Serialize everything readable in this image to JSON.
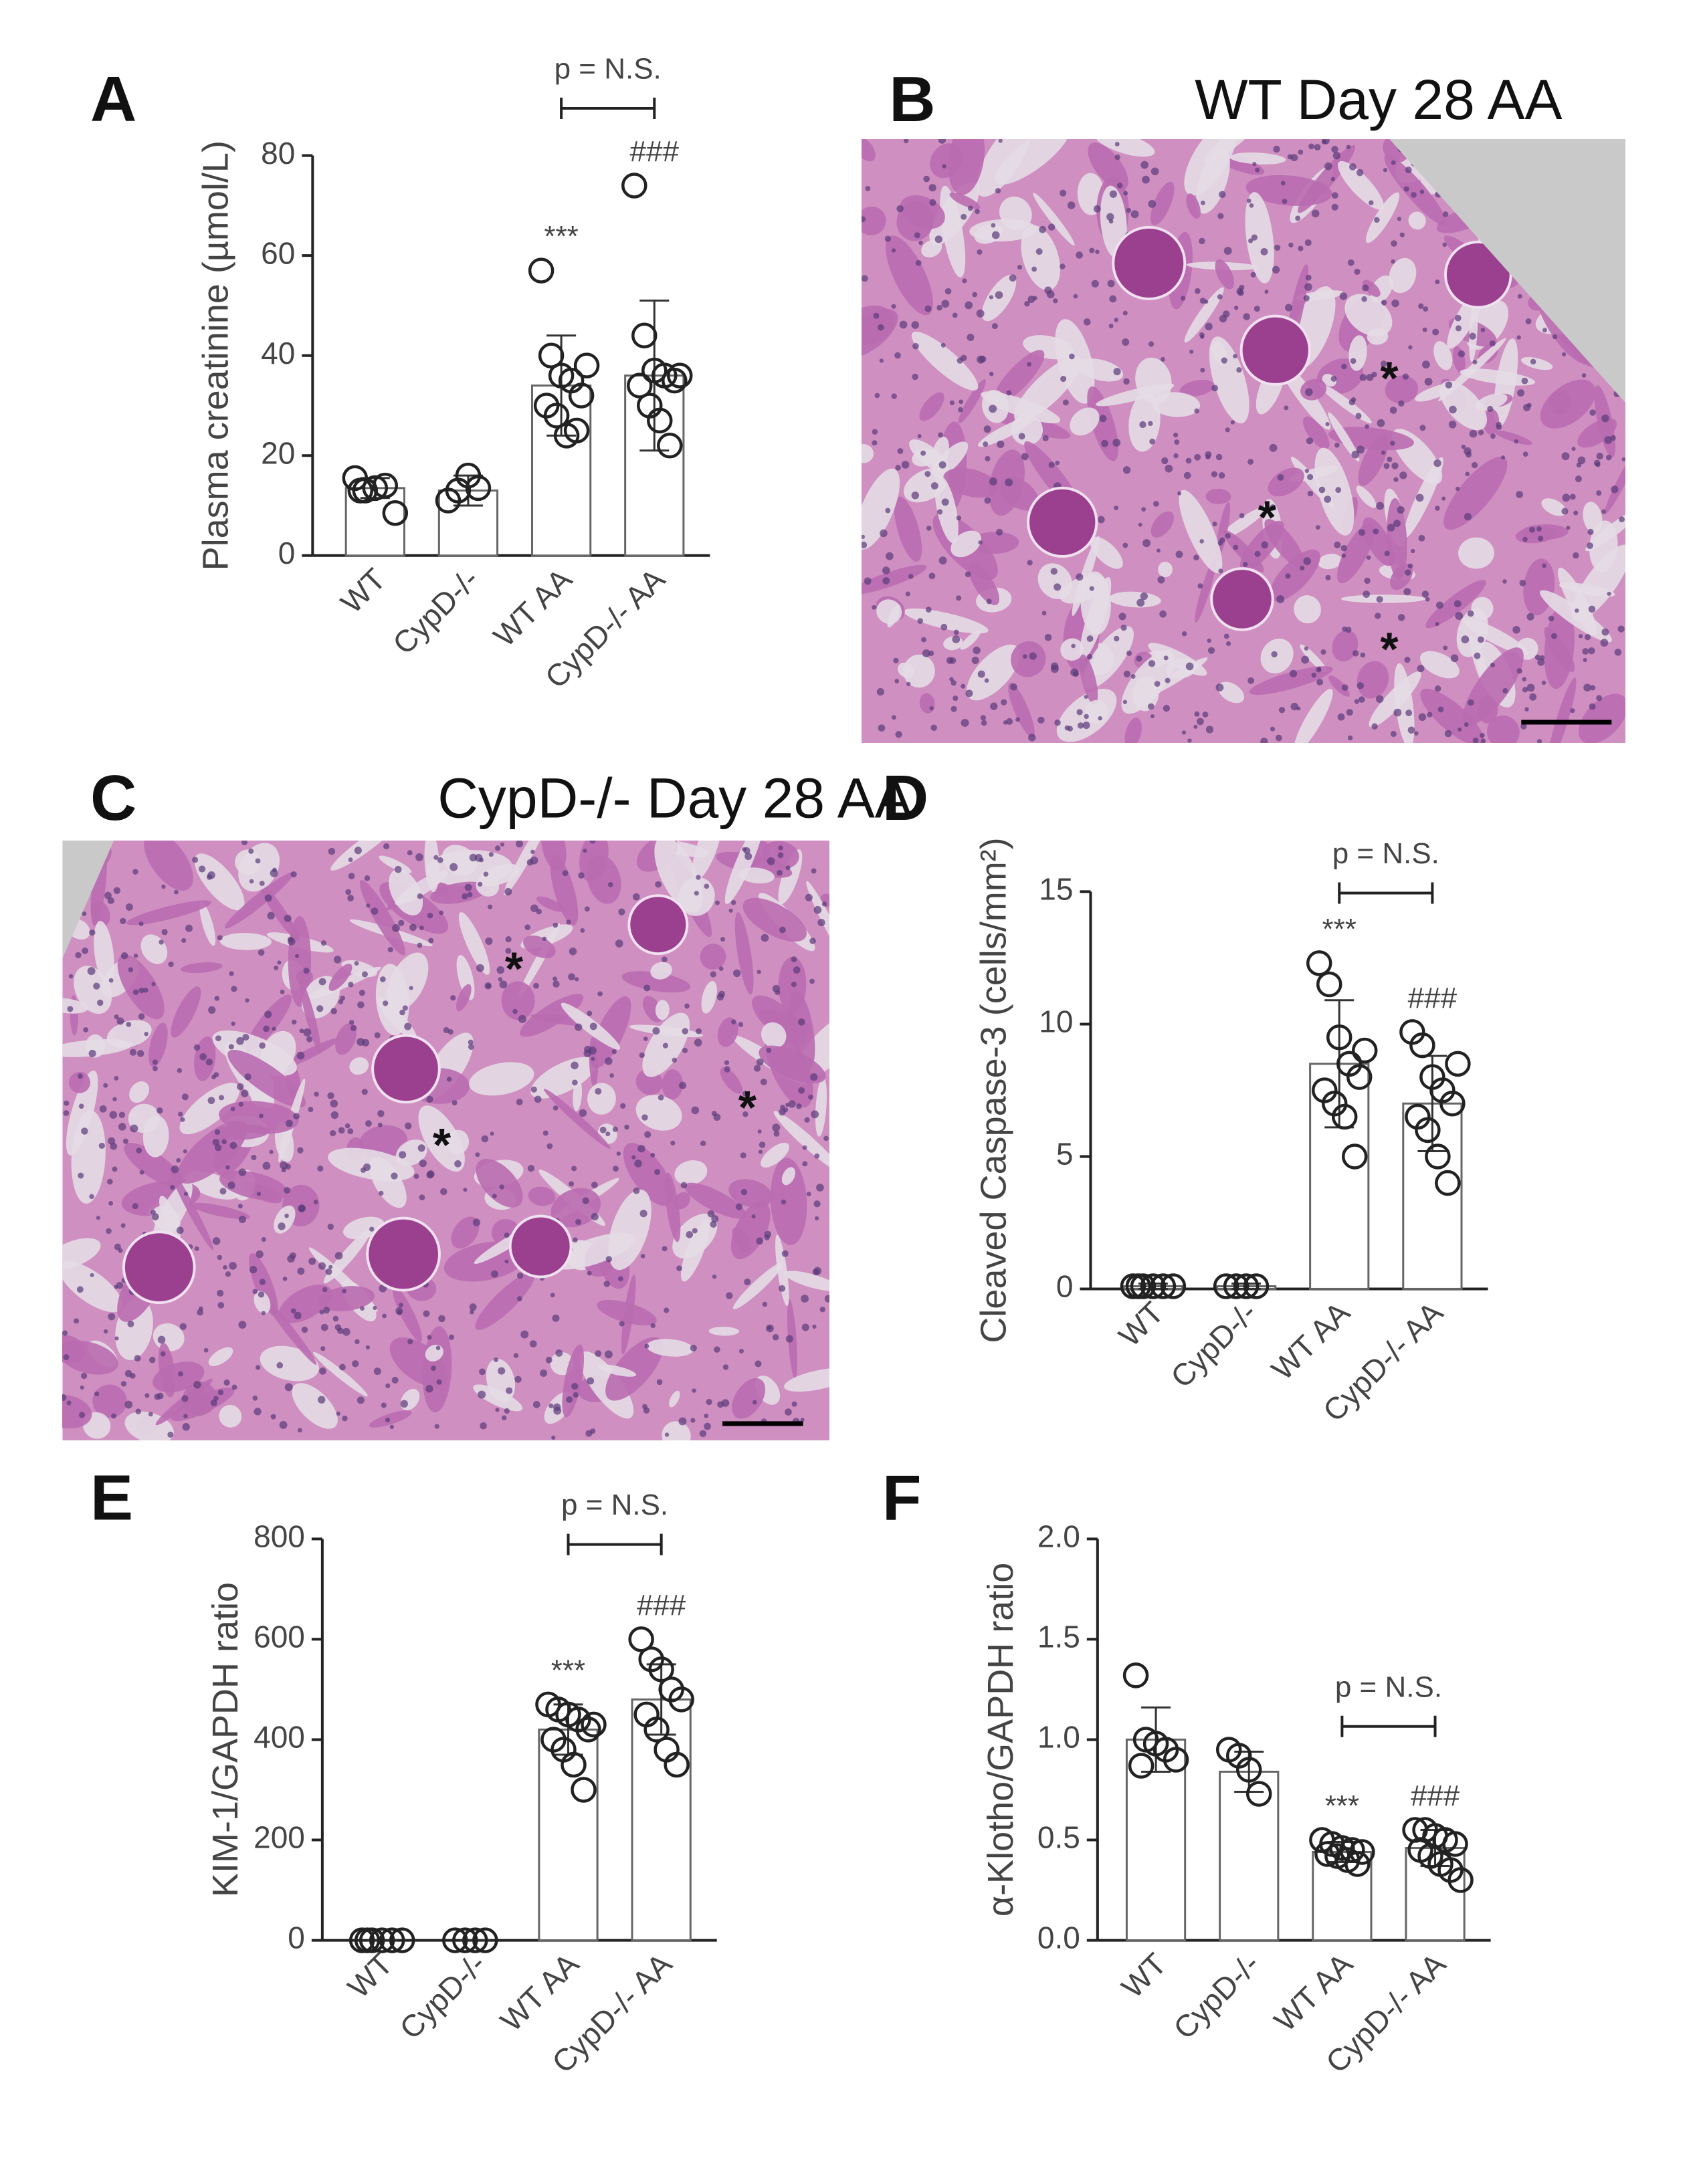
{
  "chart_data": [
    {
      "type": "bar",
      "panel": "A",
      "ylabel": "Plasma creatinine (µmol/L)",
      "categories": [
        "WT",
        "CypD-/-",
        "WT AA",
        "CypD-/- AA"
      ],
      "values": [
        13.5,
        13,
        34,
        36
      ],
      "errors": [
        2,
        3,
        10,
        15
      ],
      "points": [
        [
          15.5,
          13,
          13.5,
          14,
          8.5,
          13
        ],
        [
          11,
          13,
          16,
          13.5
        ],
        [
          57,
          40,
          36,
          35,
          32,
          30,
          28,
          24,
          25,
          38
        ],
        [
          74,
          44,
          37,
          36,
          35,
          34,
          30,
          27,
          22,
          36
        ]
      ],
      "annotations": [
        null,
        null,
        "***",
        "###"
      ],
      "bracket_label": "p = N.S.",
      "ylim": [
        0,
        80
      ],
      "yticks": [
        0,
        20,
        40,
        60,
        80
      ]
    },
    {
      "type": "bar",
      "panel": "D",
      "ylabel": "Cleaved Caspase-3 (cells/mm²)",
      "categories": [
        "WT",
        "CypD-/-",
        "WT AA",
        "CypD-/- AA"
      ],
      "values": [
        0.1,
        0.1,
        8.5,
        7
      ],
      "errors": [
        0.1,
        0.1,
        2.4,
        1.8
      ],
      "points": [
        [
          0.1,
          0.1,
          0.1,
          0.1,
          0.1,
          0.1
        ],
        [
          0.1,
          0.1,
          0.1,
          0.1
        ],
        [
          12.3,
          11.5,
          9.5,
          8.5,
          8,
          7.5,
          7,
          6.5,
          5,
          9
        ],
        [
          9.7,
          9.2,
          8,
          7.5,
          7,
          6.5,
          6,
          5,
          4,
          8.5
        ]
      ],
      "annotations": [
        null,
        null,
        "***",
        "###"
      ],
      "bracket_label": "p = N.S.",
      "ylim": [
        0,
        15
      ],
      "yticks": [
        0,
        5,
        10,
        15
      ]
    },
    {
      "type": "bar",
      "panel": "E",
      "ylabel": "KIM-1/GAPDH ratio",
      "categories": [
        "WT",
        "CypD-/-",
        "WT AA",
        "CypD-/- AA"
      ],
      "values": [
        0,
        0,
        420,
        480
      ],
      "errors": [
        0,
        0,
        50,
        70
      ],
      "points": [
        [
          0,
          0,
          0,
          0,
          0,
          0
        ],
        [
          0,
          0,
          0,
          0
        ],
        [
          470,
          460,
          450,
          440,
          420,
          400,
          380,
          350,
          300,
          430
        ],
        [
          600,
          560,
          540,
          500,
          480,
          450,
          420,
          380,
          350
        ]
      ],
      "annotations": [
        null,
        null,
        "***",
        "###"
      ],
      "bracket_label": "p = N.S.",
      "ylim": [
        0,
        800
      ],
      "yticks": [
        0,
        200,
        400,
        600,
        800
      ]
    },
    {
      "type": "bar",
      "panel": "F",
      "ylabel": "α-Klotho/GAPDH ratio",
      "categories": [
        "WT",
        "CypD-/-",
        "WT AA",
        "CypD-/- AA"
      ],
      "values": [
        1.0,
        0.84,
        0.44,
        0.46
      ],
      "errors": [
        0.16,
        0.1,
        0.05,
        0.09
      ],
      "points": [
        [
          1.32,
          1.0,
          0.98,
          0.95,
          0.9,
          0.87
        ],
        [
          0.95,
          0.92,
          0.85,
          0.73
        ],
        [
          0.5,
          0.48,
          0.46,
          0.45,
          0.44,
          0.43,
          0.42,
          0.4,
          0.38
        ],
        [
          0.55,
          0.55,
          0.52,
          0.5,
          0.48,
          0.45,
          0.42,
          0.38,
          0.35,
          0.3
        ]
      ],
      "annotations": [
        null,
        null,
        "***",
        "###"
      ],
      "bracket_label": "p = N.S.",
      "ylim": [
        0,
        2
      ],
      "yticks": [
        {
          "value": 0,
          "label": "0.0"
        },
        {
          "value": 0.5,
          "label": "0.5"
        },
        {
          "value": 1,
          "label": "1.0"
        },
        {
          "value": 1.5,
          "label": "1.5"
        },
        {
          "value": 2,
          "label": "2.0"
        }
      ]
    }
  ],
  "images": [
    {
      "panel": "B",
      "title": "WT Day 28 AA",
      "markers": [
        "*",
        "*",
        "*"
      ]
    },
    {
      "panel": "C",
      "title": "CypD-/- Day 28 AA",
      "markers": [
        "*",
        "*",
        "*"
      ]
    }
  ]
}
